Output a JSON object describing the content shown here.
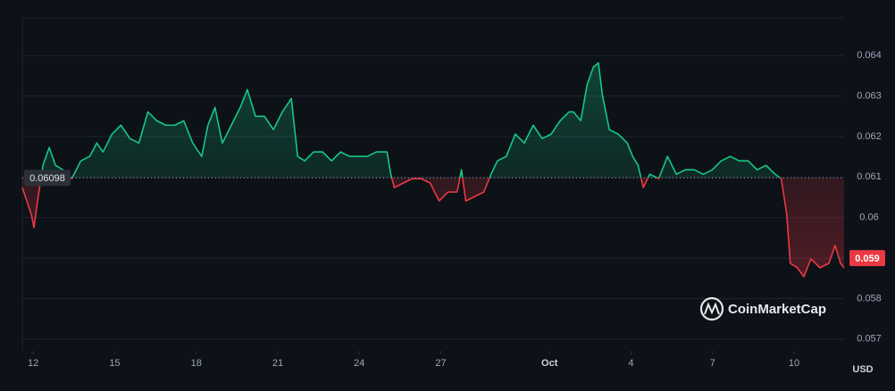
{
  "chart_data": {
    "type": "line",
    "x": [
      11.6,
      11.93,
      12.03,
      12.16,
      12.36,
      12.59,
      12.82,
      13.09,
      13.42,
      13.75,
      14.08,
      14.34,
      14.57,
      14.9,
      15.23,
      15.56,
      15.89,
      16.22,
      16.55,
      16.88,
      17.21,
      17.54,
      17.87,
      18.2,
      18.43,
      18.69,
      18.96,
      19.29,
      19.62,
      19.88,
      20.18,
      20.51,
      20.84,
      21.17,
      21.5,
      21.73,
      21.99,
      22.32,
      22.65,
      22.98,
      23.31,
      23.64,
      23.97,
      24.3,
      24.63,
      25.02,
      25.16,
      25.29,
      25.62,
      25.95,
      26.28,
      26.61,
      26.94,
      27.27,
      27.6,
      27.76,
      27.92,
      28.25,
      28.58,
      28.85,
      29.08,
      29.41,
      29.74,
      30.07,
      30.4,
      30.73,
      31.06,
      31.39,
      31.72,
      31.88,
      32.15,
      32.38,
      32.61,
      32.8,
      32.94,
      33.2,
      33.53,
      33.86,
      34.06,
      34.26,
      34.45,
      34.69,
      35.02,
      35.34,
      35.67,
      36.0,
      36.33,
      36.66,
      36.99,
      37.32,
      37.65,
      37.98,
      38.31,
      38.64,
      38.97,
      39.3,
      39.53,
      39.73,
      39.86,
      40.12,
      40.36,
      40.62,
      40.95,
      41.28,
      41.51,
      41.71,
      41.84
    ],
    "values": [
      0.06074,
      0.06008,
      0.05975,
      0.06041,
      0.06129,
      0.06173,
      0.06129,
      0.06118,
      0.06096,
      0.0614,
      0.06151,
      0.06184,
      0.06162,
      0.06206,
      0.06228,
      0.06195,
      0.06184,
      0.06261,
      0.06239,
      0.06228,
      0.06228,
      0.06239,
      0.06184,
      0.06151,
      0.06228,
      0.06272,
      0.06184,
      0.06228,
      0.06272,
      0.06316,
      0.0625,
      0.0625,
      0.06217,
      0.06261,
      0.06294,
      0.06151,
      0.0614,
      0.06162,
      0.06162,
      0.0614,
      0.06162,
      0.06151,
      0.06151,
      0.06151,
      0.06162,
      0.06162,
      0.06107,
      0.06074,
      0.06085,
      0.06096,
      0.06096,
      0.06085,
      0.06041,
      0.06063,
      0.06063,
      0.06118,
      0.06041,
      0.06052,
      0.06063,
      0.06107,
      0.0614,
      0.06151,
      0.06206,
      0.06184,
      0.06228,
      0.06195,
      0.06206,
      0.06239,
      0.06261,
      0.06261,
      0.06239,
      0.06327,
      0.06371,
      0.06382,
      0.06305,
      0.06217,
      0.06206,
      0.06184,
      0.06151,
      0.06129,
      0.06074,
      0.06107,
      0.06096,
      0.06151,
      0.06107,
      0.06118,
      0.06118,
      0.06107,
      0.06118,
      0.0614,
      0.06151,
      0.0614,
      0.0614,
      0.06118,
      0.06129,
      0.06107,
      0.06096,
      0.06008,
      0.05887,
      0.05876,
      0.05854,
      0.05898,
      0.05876,
      0.05887,
      0.05931,
      0.05887,
      0.05876
    ],
    "up_color": "#16c784",
    "down_color": "#ea3943",
    "xlim": [
      11.6,
      41.84
    ],
    "xticks": [
      12,
      15,
      18,
      21,
      24,
      27,
      {
        "value": 31,
        "label": "Oct"
      },
      {
        "value": 34,
        "label": "4"
      },
      {
        "value": 37,
        "label": "7"
      },
      {
        "value": 40,
        "label": "10"
      }
    ],
    "ylim": [
      0.05671,
      0.06493
    ],
    "yticks": [
      0.057,
      0.058,
      0.059,
      0.06,
      0.061,
      0.062,
      0.063,
      0.064
    ],
    "grid": true,
    "baseline": {
      "value": 0.06098,
      "label": "0.06098"
    },
    "last_price": {
      "value": 0.059,
      "label": "0.059"
    },
    "currency": "USD",
    "watermark": "CoinMarketCap"
  }
}
